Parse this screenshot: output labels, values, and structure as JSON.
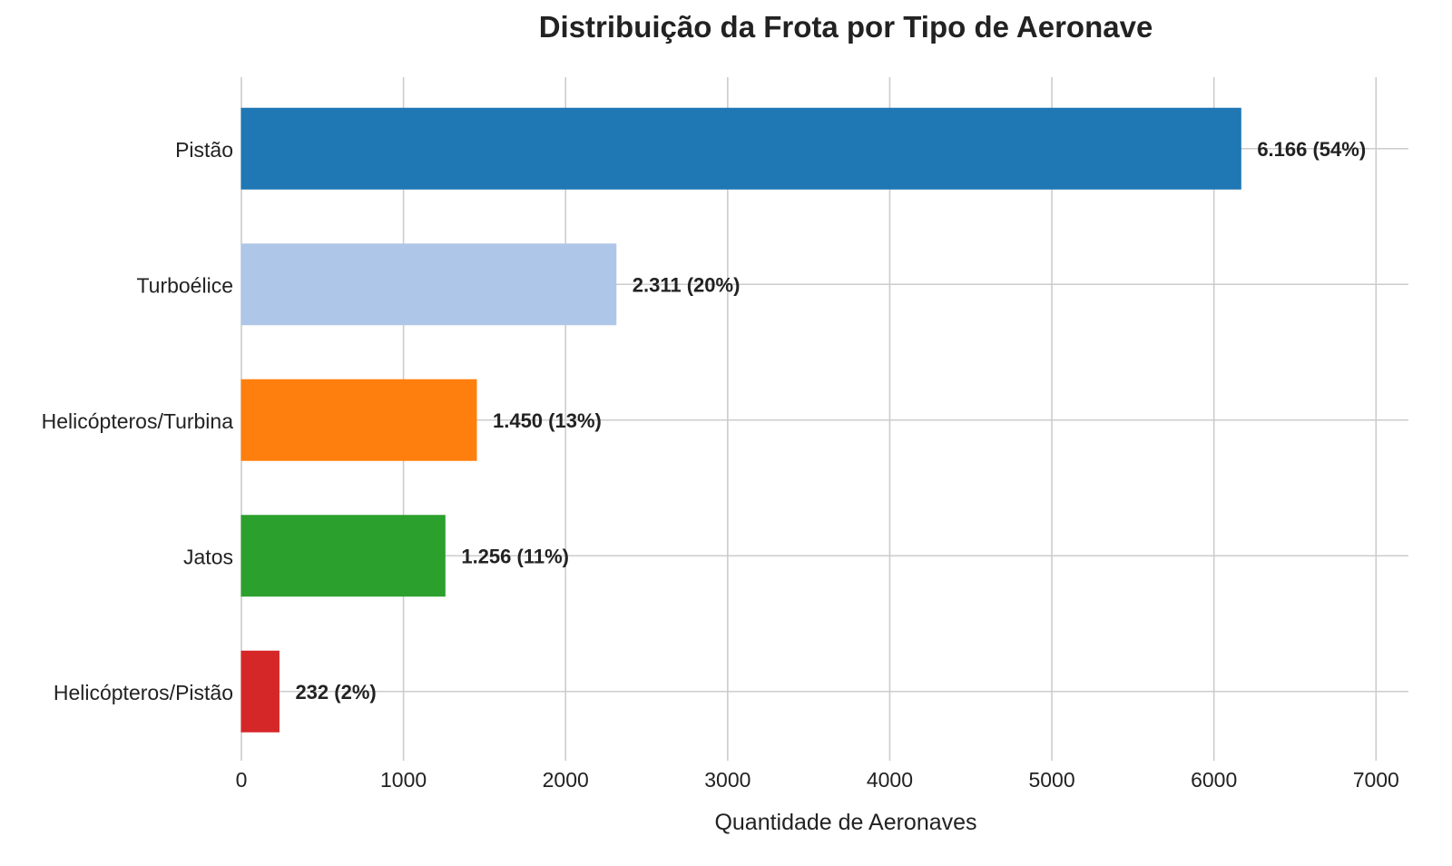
{
  "chart_data": {
    "type": "bar",
    "orientation": "horizontal",
    "title": "Distribuição da Frota por Tipo de Aeronave",
    "xlabel": "Quantidade de Aeronaves",
    "ylabel": "",
    "xlim": [
      0,
      7200
    ],
    "xticks": [
      0,
      1000,
      2000,
      3000,
      4000,
      5000,
      6000,
      7000
    ],
    "grid": true,
    "categories": [
      "Pistão",
      "Turboélice",
      "Helicópteros/Turbina",
      "Jatos",
      "Helicópteros/Pistão"
    ],
    "values": [
      6166,
      2311,
      1450,
      1256,
      232
    ],
    "data_labels": [
      "6.166 (54%)",
      "2.311 (20%)",
      "1.450 (13%)",
      "1.256 (11%)",
      "232 (2%)"
    ],
    "colors": [
      "#1f77b4",
      "#aec7e8",
      "#ff7f0e",
      "#2ca02c",
      "#d62728"
    ]
  }
}
